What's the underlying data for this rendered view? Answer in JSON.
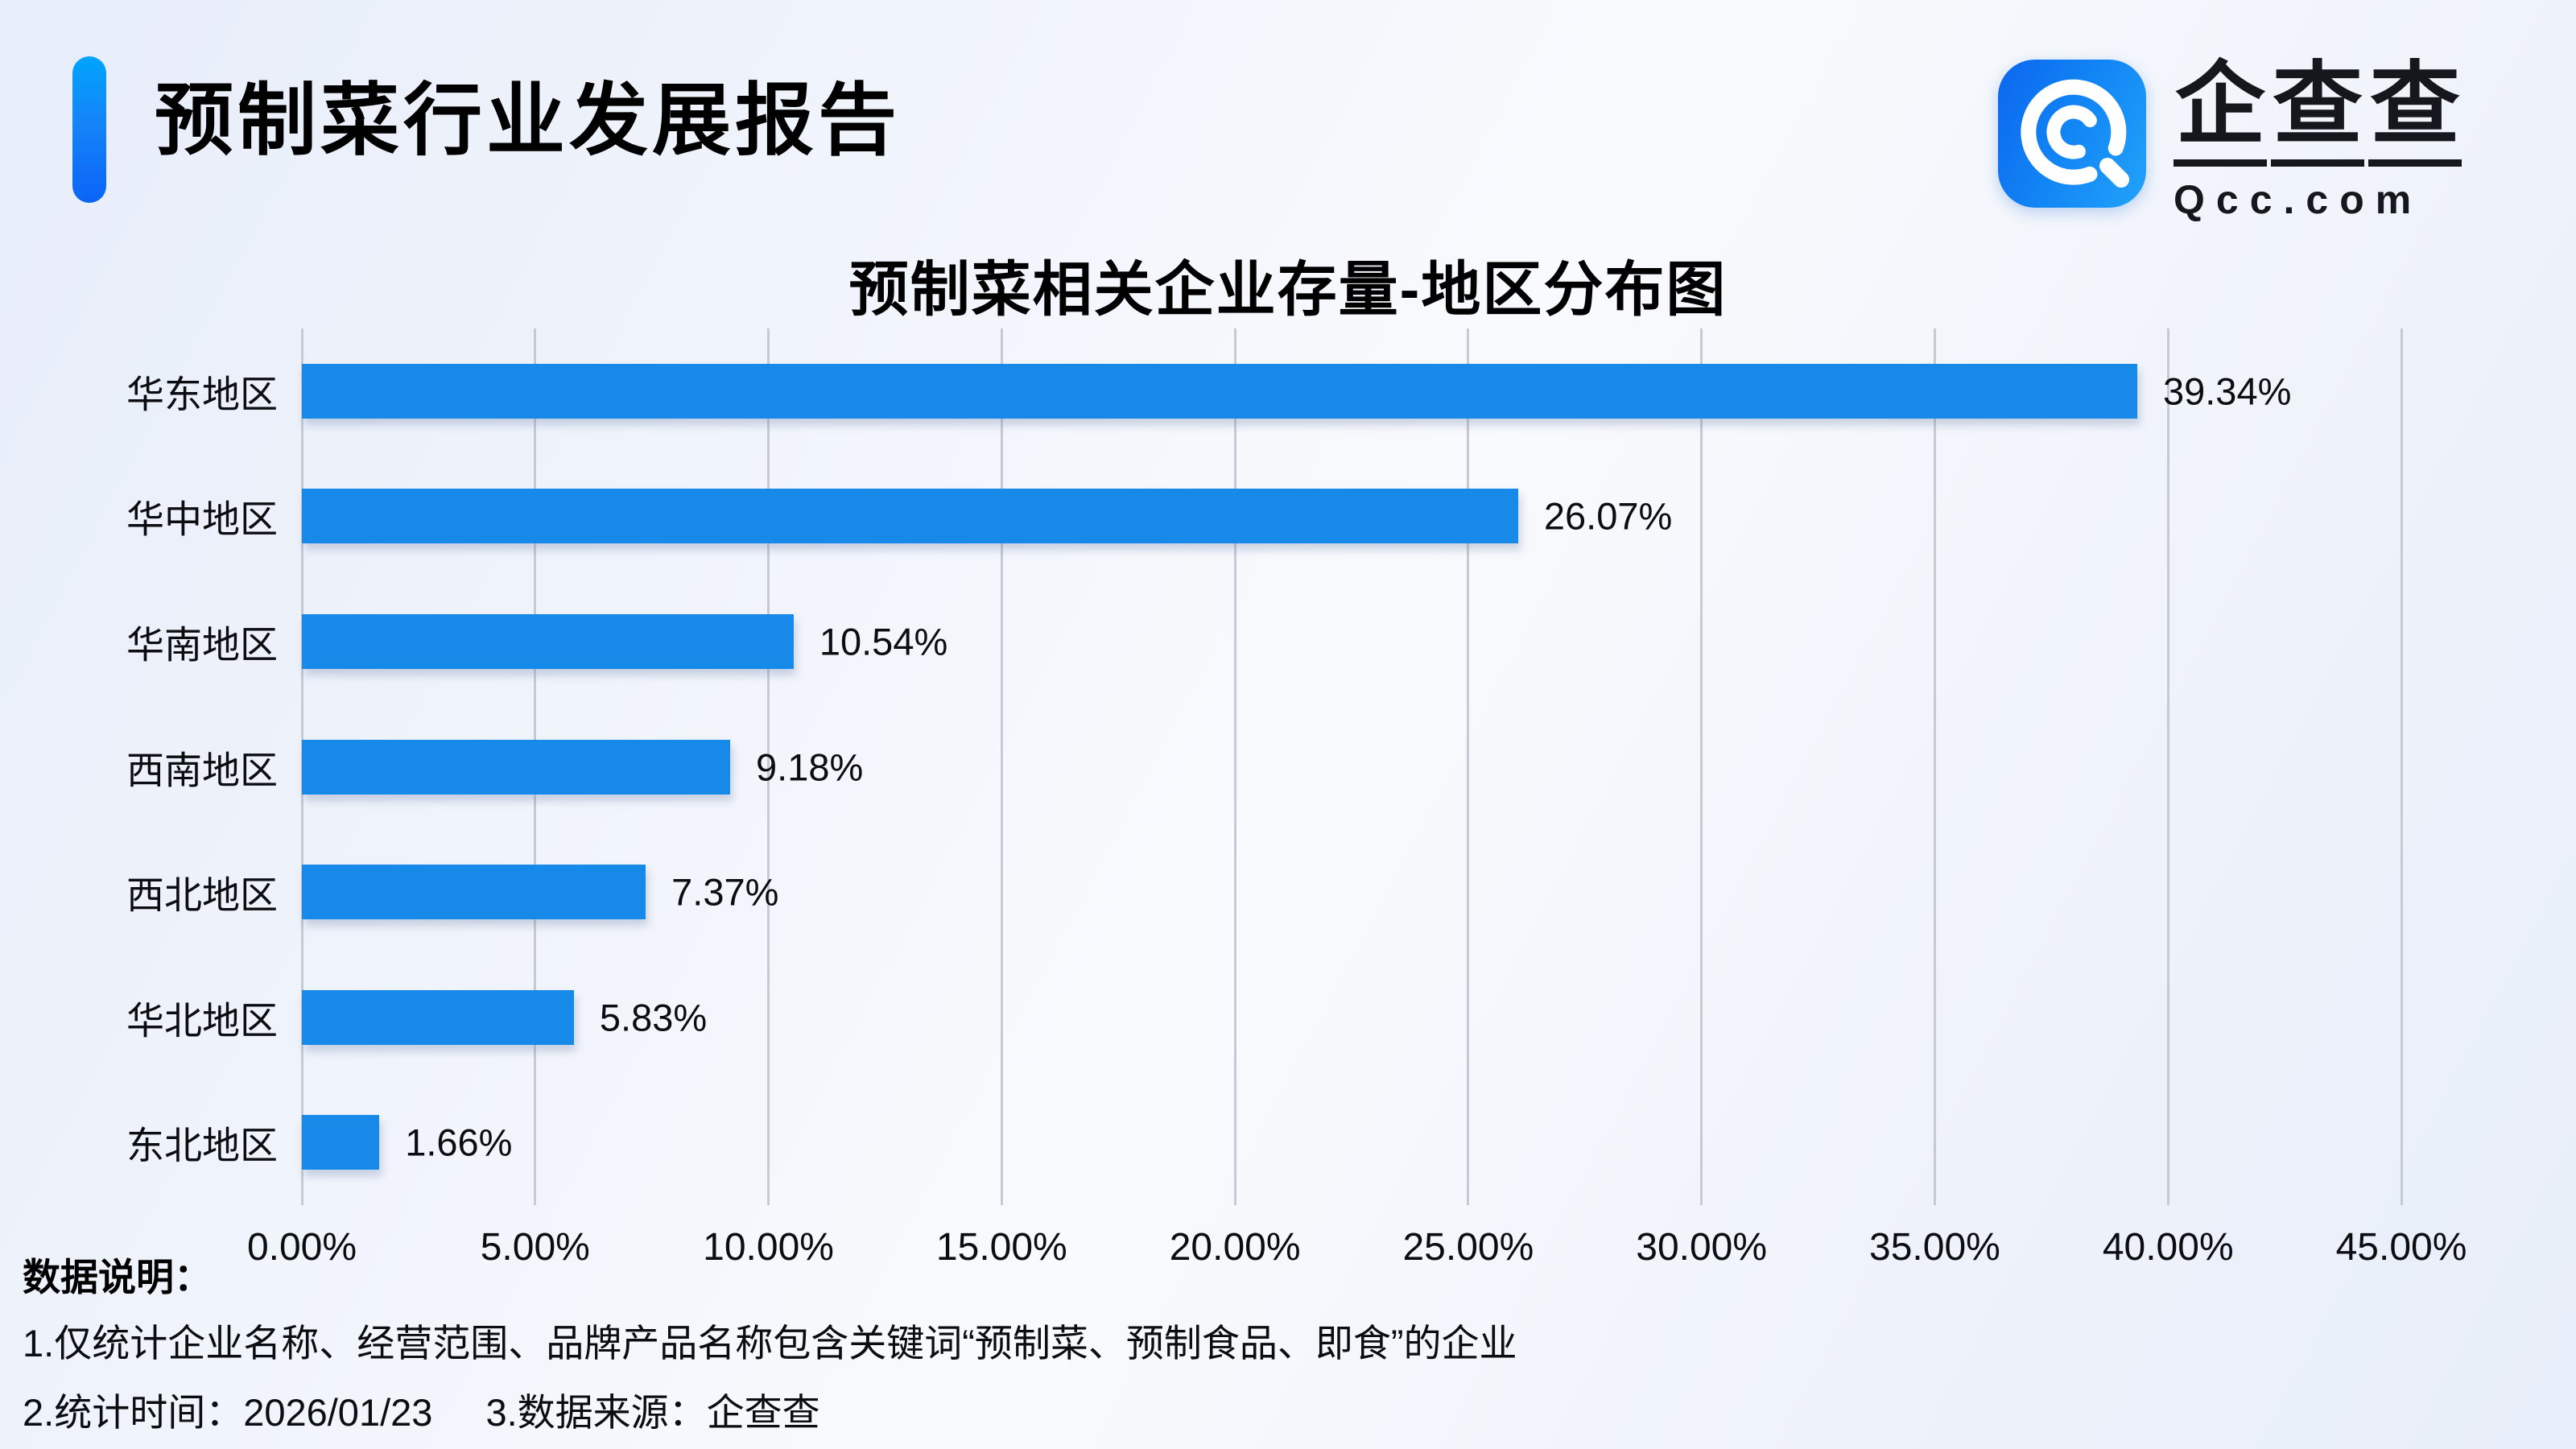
{
  "header": {
    "title": "预制菜行业发展报告"
  },
  "logo": {
    "icon": "qcc-magnifier-icon",
    "icon_color": "#1183f4",
    "brand": "企查查",
    "domain": "Qcc.com"
  },
  "chart_data": {
    "type": "bar",
    "orientation": "horizontal",
    "title": "预制菜相关企业存量-地区分布图",
    "categories": [
      "华东地区",
      "华中地区",
      "华南地区",
      "西南地区",
      "西北地区",
      "华北地区",
      "东北地区"
    ],
    "values": [
      39.34,
      26.07,
      10.54,
      9.18,
      7.37,
      5.83,
      1.66
    ],
    "value_labels": [
      "39.34%",
      "26.07%",
      "10.54%",
      "9.18%",
      "7.37%",
      "5.83%",
      "1.66%"
    ],
    "x_ticks": [
      "0.00%",
      "5.00%",
      "10.00%",
      "15.00%",
      "20.00%",
      "25.00%",
      "30.00%",
      "35.00%",
      "40.00%",
      "45.00%"
    ],
    "xlim": [
      0,
      45
    ],
    "grid": true,
    "legend": false,
    "bar_color": "#1789e9",
    "gridline_color": "#c6cad4"
  },
  "footer": {
    "label": "数据说明：",
    "note1": "1.仅统计企业名称、经营范围、品牌产品名称包含关键词“预制菜、预制食品、即食”的企业",
    "note2": "2.统计时间：2026/01/23",
    "note3": "3.数据来源：企查查"
  }
}
